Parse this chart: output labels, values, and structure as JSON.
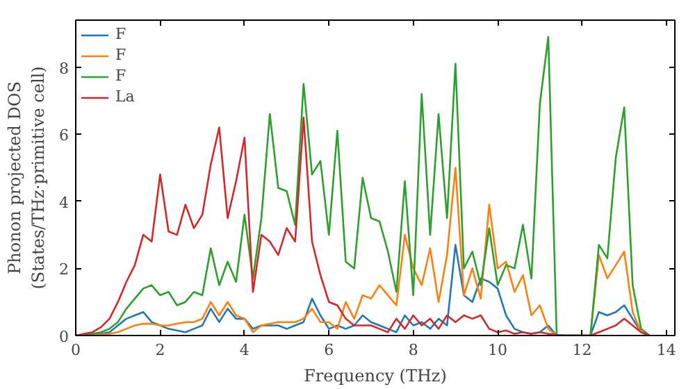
{
  "chart_data": {
    "type": "line",
    "xlabel": "Frequency (THz)",
    "ylabel": "Phonon projected DOS\n(States/THz·primitive cell)",
    "x": [
      0,
      0.2,
      0.4,
      0.6,
      0.8,
      1.0,
      1.2,
      1.4,
      1.6,
      1.8,
      2.0,
      2.2,
      2.4,
      2.6,
      2.8,
      3.0,
      3.2,
      3.4,
      3.6,
      3.8,
      4.0,
      4.2,
      4.4,
      4.6,
      4.8,
      5.0,
      5.2,
      5.4,
      5.6,
      5.8,
      6.0,
      6.2,
      6.4,
      6.6,
      6.8,
      7.0,
      7.2,
      7.4,
      7.6,
      7.8,
      8.0,
      8.2,
      8.4,
      8.6,
      8.8,
      9.0,
      9.2,
      9.4,
      9.6,
      9.8,
      10.0,
      10.2,
      10.4,
      10.6,
      10.8,
      11.0,
      11.2,
      11.4,
      11.6,
      11.8,
      12.0,
      12.2,
      12.4,
      12.6,
      12.8,
      13.0,
      13.2,
      13.4,
      13.6
    ],
    "series": [
      {
        "name": "F",
        "color": "#1f77b4",
        "values": [
          null,
          null,
          0.02,
          0.05,
          0.1,
          0.3,
          0.5,
          0.6,
          0.7,
          0.4,
          0.3,
          0.2,
          0.15,
          0.1,
          0.2,
          0.3,
          0.8,
          0.4,
          0.8,
          0.5,
          0.5,
          0.2,
          0.3,
          0.3,
          0.3,
          0.2,
          0.3,
          0.4,
          1.1,
          0.6,
          0.2,
          0.3,
          0.2,
          0.3,
          0.6,
          0.4,
          0.3,
          0.2,
          0.1,
          0.6,
          0.3,
          0.4,
          0.2,
          0.5,
          0.3,
          2.7,
          1.2,
          1.0,
          1.7,
          1.6,
          1.4,
          0.6,
          0.2,
          0.1,
          0.05,
          0.1,
          0.3,
          0,
          0,
          0,
          0,
          0,
          0.7,
          0.6,
          0.7,
          0.9,
          0.5,
          0.1,
          0
        ]
      },
      {
        "name": "F",
        "color": "#ff7f0e",
        "values": [
          0,
          0,
          0.01,
          0.03,
          0.05,
          0.1,
          0.2,
          0.3,
          0.35,
          0.35,
          0.3,
          0.3,
          0.35,
          0.4,
          0.4,
          0.5,
          1.0,
          0.6,
          1.0,
          0.6,
          0.5,
          0.1,
          0.3,
          0.35,
          0.4,
          0.4,
          0.4,
          0.5,
          0.8,
          0.4,
          0.4,
          0.2,
          1.0,
          0.5,
          1.2,
          1.1,
          1.5,
          1.2,
          0.9,
          3.0,
          2.0,
          1.5,
          2.6,
          1.0,
          2.4,
          5.0,
          1.2,
          2.0,
          1.1,
          3.9,
          2.0,
          2.2,
          1.3,
          1.8,
          0.6,
          0.9,
          0.2,
          0,
          0,
          0,
          0,
          0,
          2.4,
          1.7,
          2.1,
          2.5,
          0.7,
          0.1,
          0
        ]
      },
      {
        "name": "F",
        "color": "#2ca02c",
        "values": [
          0,
          0.02,
          0.05,
          0.1,
          0.2,
          0.4,
          0.8,
          1.1,
          1.4,
          1.5,
          1.2,
          1.3,
          0.9,
          1.0,
          1.3,
          1.2,
          2.6,
          1.5,
          2.2,
          1.6,
          3.6,
          1.7,
          3.5,
          6.6,
          4.4,
          4.3,
          3.3,
          7.5,
          4.8,
          5.2,
          3.0,
          6.1,
          2.2,
          2.0,
          4.7,
          3.5,
          3.4,
          2.5,
          1.3,
          4.6,
          1.2,
          7.2,
          3.0,
          6.6,
          3.5,
          8.1,
          2.0,
          2.5,
          1.5,
          3.2,
          1.5,
          2.1,
          2.0,
          3.3,
          1.7,
          6.9,
          8.9,
          0,
          0,
          0,
          0,
          0,
          2.7,
          2.3,
          5.3,
          6.8,
          1.5,
          0.2,
          0
        ]
      },
      {
        "name": "La",
        "color": "#d62728",
        "values": [
          0,
          0.05,
          0.1,
          0.25,
          0.5,
          1.0,
          1.6,
          2.1,
          3.0,
          2.8,
          4.8,
          3.1,
          3.0,
          3.9,
          3.2,
          3.6,
          5.1,
          6.2,
          3.5,
          4.6,
          5.9,
          1.3,
          3.0,
          2.8,
          2.4,
          3.2,
          2.8,
          6.5,
          2.8,
          1.8,
          1.0,
          0.9,
          0.5,
          0.3,
          0.3,
          0.3,
          0.2,
          0.1,
          0.5,
          0.2,
          0.6,
          0.3,
          0.5,
          0.2,
          0.6,
          0.4,
          0.6,
          0.5,
          0.6,
          0.2,
          0.1,
          0.15,
          0.05,
          0.1,
          0.05,
          0.1,
          0.05,
          0.02,
          0,
          0,
          0,
          0,
          0.1,
          0.2,
          0.3,
          0.5,
          0.3,
          0.1,
          0
        ]
      }
    ],
    "xlim": [
      0,
      14.2
    ],
    "ylim": [
      0,
      9.4
    ],
    "xticks": [
      0,
      2,
      4,
      6,
      8,
      10,
      12,
      14
    ],
    "yticks": [
      0,
      2,
      4,
      6,
      8
    ],
    "legend": "top left",
    "grid": false,
    "marker": "none",
    "line_style": "solid"
  }
}
